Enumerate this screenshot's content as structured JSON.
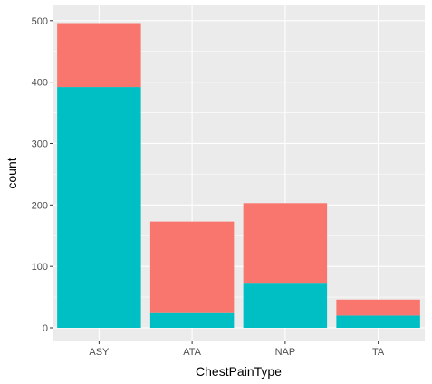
{
  "chart_data": {
    "type": "bar",
    "stacked": true,
    "categories": [
      "ASY",
      "ATA",
      "NAP",
      "TA"
    ],
    "series": [
      {
        "color": "#F8766D",
        "values": [
          104,
          149,
          131,
          26
        ]
      },
      {
        "color": "#00BFC4",
        "values": [
          392,
          24,
          72,
          20
        ]
      }
    ],
    "xlabel": "ChestPainType",
    "ylabel": "count",
    "ylim": [
      0,
      520
    ],
    "yticks": [
      0,
      100,
      200,
      300,
      400,
      500
    ],
    "ytick_labels": [
      "0",
      "100",
      "200",
      "300",
      "400",
      "500"
    ],
    "grid": true,
    "panel_background": "#EBEBEB",
    "gridline_color": "#FFFFFF",
    "legend": "none"
  }
}
